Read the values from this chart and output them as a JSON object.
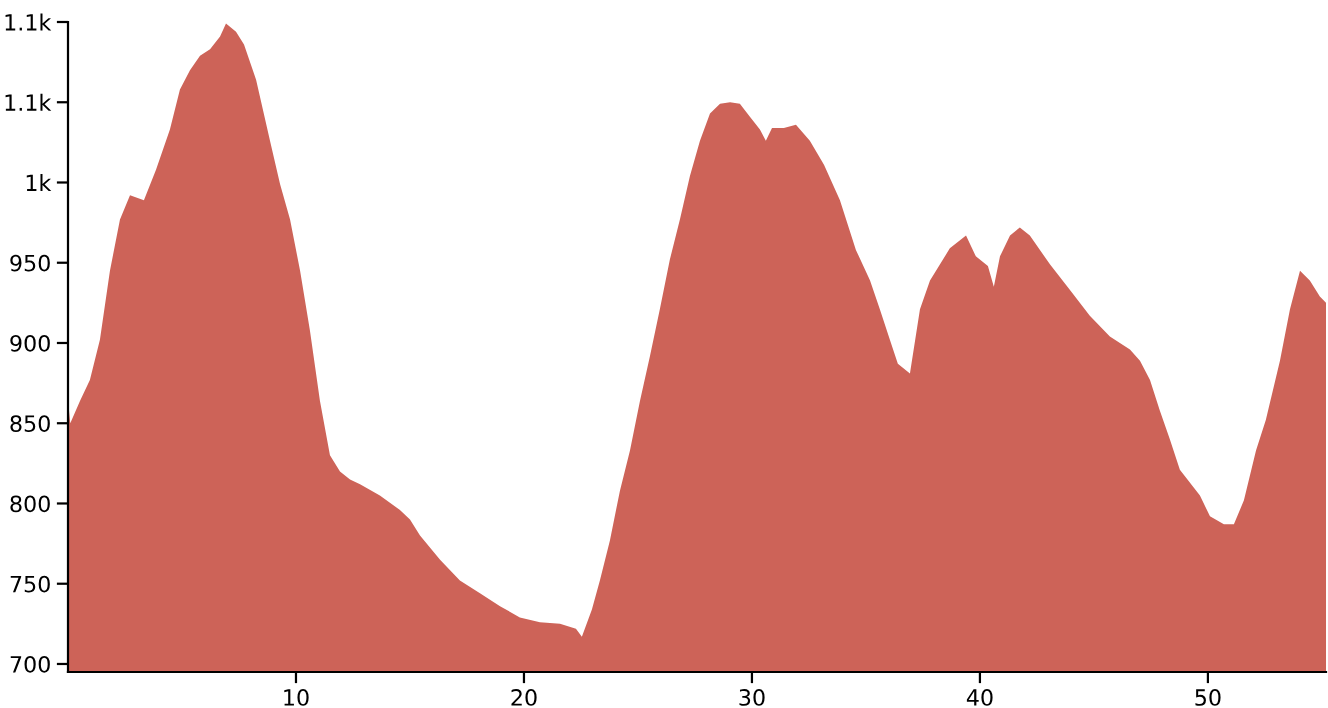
{
  "chart_data": {
    "type": "area",
    "color": "#cd6358",
    "grid": false,
    "x": [
      0,
      0.1,
      0.53,
      0.96,
      1.4,
      1.84,
      2.28,
      2.72,
      3.33,
      3.86,
      4.47,
      4.91,
      5.35,
      5.79,
      6.23,
      6.67,
      6.93,
      7.37,
      7.72,
      8.25,
      8.86,
      9.3,
      9.74,
      10.18,
      10.61,
      11.05,
      11.49,
      11.93,
      12.37,
      12.81,
      13.68,
      14.56,
      15,
      15.44,
      16.32,
      17.19,
      18.07,
      18.95,
      19.82,
      20.7,
      21.58,
      22.28,
      22.54,
      22.98,
      23.33,
      23.77,
      24.21,
      24.65,
      25.09,
      25.53,
      25.96,
      26.4,
      26.84,
      27.28,
      27.72,
      28.16,
      28.6,
      29.04,
      29.47,
      29.91,
      30.35,
      30.61,
      30.88,
      31.4,
      31.93,
      32.54,
      33.16,
      33.86,
      34.56,
      35.18,
      35.61,
      36.05,
      36.4,
      36.93,
      37.37,
      37.81,
      38.25,
      38.68,
      39.39,
      39.82,
      40.35,
      40.61,
      40.88,
      41.32,
      41.75,
      42.19,
      43.07,
      43.95,
      44.82,
      45.7,
      46.58,
      47.02,
      47.46,
      47.89,
      48.33,
      48.77,
      49.65,
      50.09,
      50.7,
      51.14,
      51.58,
      52.11,
      52.54,
      53.16,
      53.6,
      54.04,
      54.47,
      54.91,
      55.18
    ],
    "values": [
      864,
      850,
      864,
      877,
      902,
      945,
      977,
      992,
      989,
      1008,
      1033,
      1058,
      1070,
      1079,
      1083,
      1091,
      1099,
      1094,
      1086,
      1064,
      1026,
      999,
      977,
      945,
      908,
      864,
      830,
      820,
      815,
      812,
      805,
      796,
      790,
      780,
      765,
      752,
      744,
      736,
      729,
      726,
      725,
      722,
      717,
      734,
      752,
      777,
      808,
      833,
      864,
      892,
      921,
      952,
      977,
      1004,
      1026,
      1043,
      1049,
      1050,
      1049,
      1041,
      1033,
      1026,
      1034,
      1034,
      1036,
      1026,
      1011,
      989,
      958,
      939,
      921,
      902,
      887,
      881,
      921,
      939,
      949,
      959,
      967,
      954,
      948,
      935,
      954,
      967,
      972,
      967,
      949,
      933,
      917,
      904,
      896,
      889,
      877,
      858,
      840,
      821,
      805,
      792,
      787,
      787,
      802,
      833,
      852,
      889,
      921,
      945,
      939,
      929,
      925
    ],
    "xlim": [
      0,
      55.18
    ],
    "ylim": [
      695,
      1100
    ],
    "xticks": [
      10,
      20,
      30,
      40,
      50
    ],
    "yticks": [
      700,
      750,
      800,
      850,
      900,
      950,
      {
        "value": 1000,
        "label": "1k"
      },
      {
        "value": 1050,
        "label": "1.1k"
      },
      {
        "value": 1100,
        "label": "1.1k"
      }
    ]
  }
}
